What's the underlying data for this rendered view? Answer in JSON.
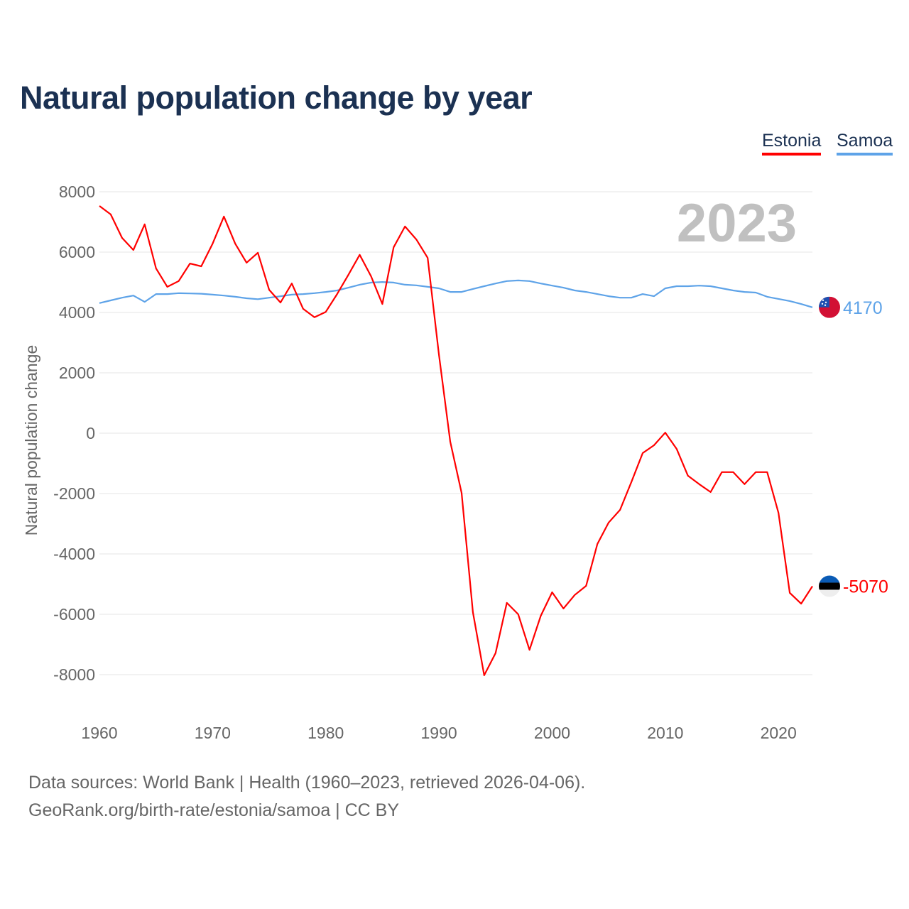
{
  "title": "Natural population change by year",
  "legend": [
    {
      "name": "Estonia",
      "color": "#ff0000"
    },
    {
      "name": "Samoa",
      "color": "#5ea3e8"
    }
  ],
  "footer": {
    "line1": "Data sources: World Bank | Health (1960–2023, retrieved 2026-04-06).",
    "line2": "GeoRank.org/birth-rate/estonia/samoa | CC BY"
  },
  "chart_data": {
    "type": "line",
    "title": "Natural population change by year",
    "ylabel": "Natural population change",
    "xlabel": "",
    "year_label": "2023",
    "ylim": [
      -8000,
      8000
    ],
    "xlim": [
      1960,
      2023
    ],
    "yticks": [
      8000,
      6000,
      4000,
      2000,
      0,
      -2000,
      -4000,
      -6000,
      -8000
    ],
    "xticks": [
      1960,
      1970,
      1980,
      1990,
      2000,
      2010,
      2020
    ],
    "grid": true,
    "legend_position": "top-right",
    "x_start": 1960,
    "series": [
      {
        "name": "Estonia",
        "color": "#ff0000",
        "end_label": "-5070",
        "flag": "estonia-flag",
        "values": [
          7530,
          7250,
          6470,
          6070,
          6920,
          5460,
          4850,
          5040,
          5620,
          5530,
          6280,
          7180,
          6280,
          5650,
          5980,
          4750,
          4330,
          4960,
          4120,
          3840,
          4020,
          4610,
          5250,
          5910,
          5200,
          4280,
          6160,
          6850,
          6420,
          5810,
          2600,
          -280,
          -1980,
          -5930,
          -8020,
          -7290,
          -5620,
          -6000,
          -7180,
          -6050,
          -5270,
          -5810,
          -5360,
          -5060,
          -3670,
          -2960,
          -2540,
          -1620,
          -660,
          -400,
          20,
          -520,
          -1410,
          -1690,
          -1950,
          -1290,
          -1290,
          -1690,
          -1290,
          -1290,
          -2640,
          -5290,
          -5650,
          -5070
        ]
      },
      {
        "name": "Samoa",
        "color": "#5ea3e8",
        "end_label": "4170",
        "flag": "samoa-flag",
        "values": [
          4310,
          4400,
          4490,
          4560,
          4350,
          4610,
          4610,
          4640,
          4630,
          4620,
          4590,
          4560,
          4520,
          4470,
          4440,
          4490,
          4540,
          4590,
          4610,
          4640,
          4680,
          4730,
          4820,
          4920,
          4990,
          5010,
          4990,
          4920,
          4900,
          4850,
          4800,
          4680,
          4680,
          4780,
          4870,
          4960,
          5040,
          5060,
          5040,
          4960,
          4890,
          4820,
          4730,
          4680,
          4610,
          4540,
          4490,
          4490,
          4610,
          4540,
          4800,
          4870,
          4870,
          4890,
          4870,
          4800,
          4730,
          4680,
          4660,
          4520,
          4450,
          4380,
          4280,
          4170
        ]
      }
    ]
  }
}
